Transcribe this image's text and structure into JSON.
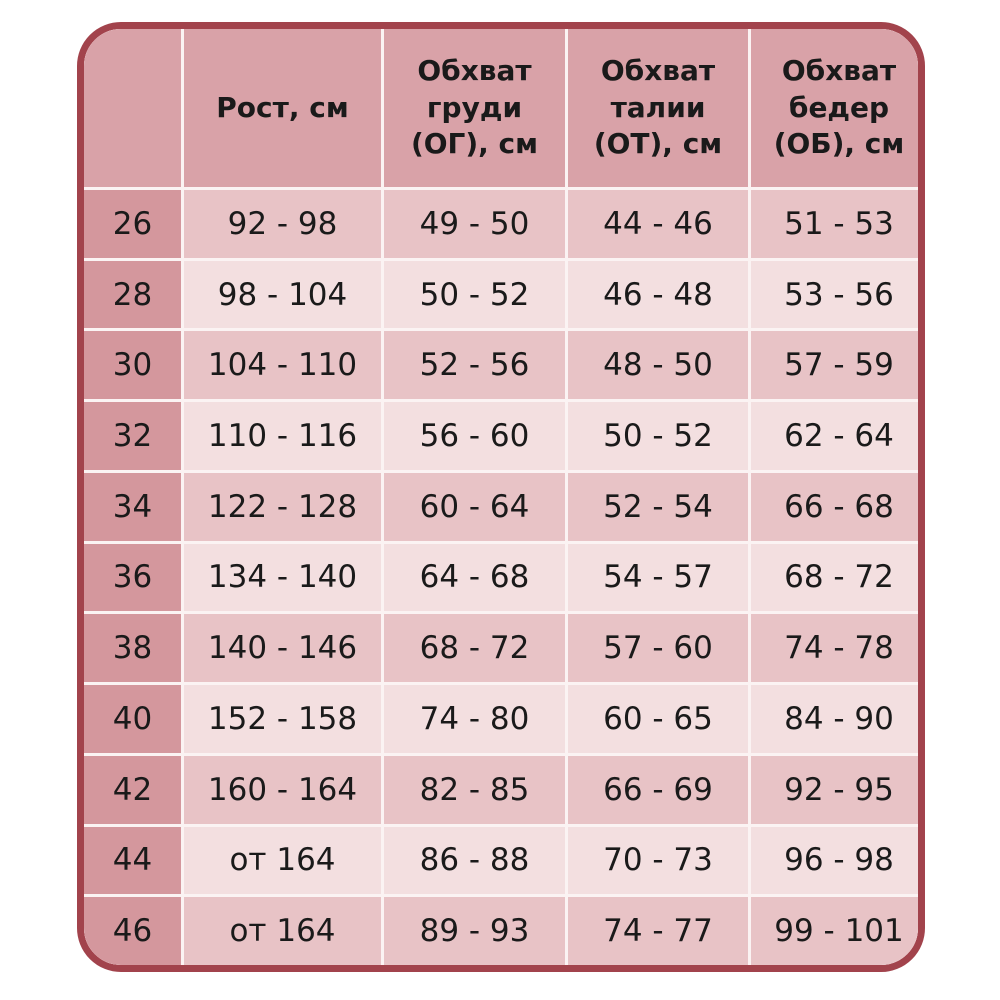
{
  "table": {
    "headers": [
      "",
      "Рост, см",
      "Обхват груди (ОГ), см",
      "Обхват талии (ОТ), см",
      "Обхват бедер (ОБ), см"
    ],
    "header_lines": [
      [
        ""
      ],
      [
        "Рост, см"
      ],
      [
        "Обхват",
        "груди",
        "(ОГ), см"
      ],
      [
        "Обхват",
        "талии",
        "(ОТ), см"
      ],
      [
        "Обхват",
        "бедер",
        "(ОБ), см"
      ]
    ],
    "rows": [
      [
        "26",
        "92 - 98",
        "49 - 50",
        "44 - 46",
        "51 - 53"
      ],
      [
        "28",
        "98 - 104",
        "50 - 52",
        "46 - 48",
        "53 - 56"
      ],
      [
        "30",
        "104 - 110",
        "52 - 56",
        "48 - 50",
        "57 - 59"
      ],
      [
        "32",
        "110 - 116",
        "56 - 60",
        "50 - 52",
        "62 - 64"
      ],
      [
        "34",
        "122 - 128",
        "60 - 64",
        "52 - 54",
        "66 - 68"
      ],
      [
        "36",
        "134 - 140",
        "64 - 68",
        "54 - 57",
        "68 - 72"
      ],
      [
        "38",
        "140 - 146",
        "68 - 72",
        "57 - 60",
        "74 - 78"
      ],
      [
        "40",
        "152 - 158",
        "74 - 80",
        "60 - 65",
        "84 - 90"
      ],
      [
        "42",
        "160 - 164",
        "82 - 85",
        "66 - 69",
        "92 - 95"
      ],
      [
        "44",
        "от 164",
        "86 - 88",
        "70 - 73",
        "96 - 98"
      ],
      [
        "46",
        "от 164",
        "89 - 93",
        "74 - 77",
        "99 - 101"
      ]
    ]
  },
  "colors": {
    "border": "#a2434c",
    "header": "#d9a2a8",
    "size_column": "#d4979d",
    "row_dark": "#e8c3c6",
    "row_light": "#f3dfe0"
  }
}
